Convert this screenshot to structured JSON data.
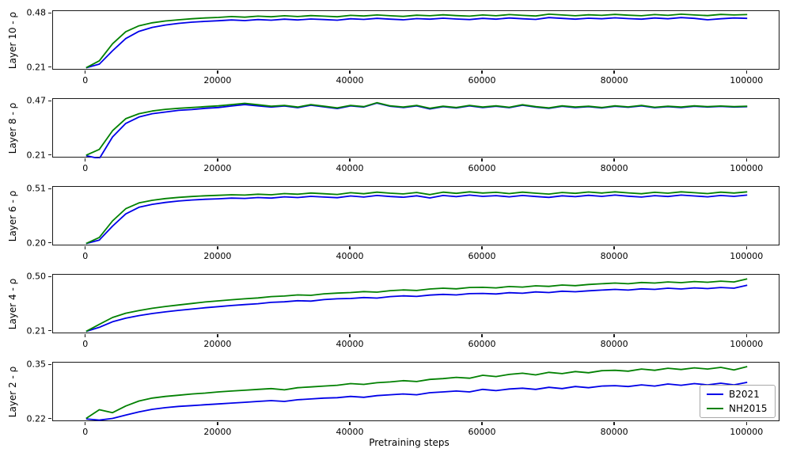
{
  "chart_data": {
    "type": "line",
    "xlabel": "Pretraining steps",
    "x_ticks": [
      0,
      20000,
      40000,
      60000,
      80000,
      100000
    ],
    "xlim": [
      -5000,
      105000
    ],
    "grid": false,
    "legend": {
      "position": "lower right",
      "entries": [
        {
          "label": "B2021",
          "color": "#0000e8"
        },
        {
          "label": "NH2015",
          "color": "#028102"
        }
      ]
    },
    "x": [
      0,
      2000,
      4000,
      6000,
      8000,
      10000,
      12000,
      14000,
      16000,
      18000,
      20000,
      22000,
      24000,
      26000,
      28000,
      30000,
      32000,
      34000,
      36000,
      38000,
      40000,
      42000,
      44000,
      46000,
      48000,
      50000,
      52000,
      54000,
      56000,
      58000,
      60000,
      62000,
      64000,
      66000,
      68000,
      70000,
      72000,
      74000,
      76000,
      78000,
      80000,
      82000,
      84000,
      86000,
      88000,
      90000,
      92000,
      94000,
      96000,
      98000,
      100000
    ],
    "panels": [
      {
        "ylabel": "Layer 10 - ρ",
        "yticks": [
          0.21,
          0.48
        ],
        "series": [
          {
            "name": "B2021",
            "color": "#0000e8",
            "values": [
              0.21,
              0.228,
              0.295,
              0.356,
              0.392,
              0.412,
              0.424,
              0.432,
              0.438,
              0.442,
              0.445,
              0.449,
              0.446,
              0.451,
              0.448,
              0.453,
              0.449,
              0.454,
              0.451,
              0.448,
              0.455,
              0.452,
              0.457,
              0.453,
              0.45,
              0.456,
              0.453,
              0.458,
              0.454,
              0.451,
              0.457,
              0.453,
              0.459,
              0.455,
              0.452,
              0.461,
              0.457,
              0.453,
              0.458,
              0.455,
              0.46,
              0.456,
              0.453,
              0.459,
              0.455,
              0.461,
              0.457,
              0.45,
              0.455,
              0.459,
              0.457
            ]
          },
          {
            "name": "NH2015",
            "color": "#028102",
            "values": [
              0.21,
              0.245,
              0.33,
              0.39,
              0.42,
              0.435,
              0.444,
              0.45,
              0.455,
              0.459,
              0.462,
              0.466,
              0.463,
              0.468,
              0.465,
              0.47,
              0.466,
              0.471,
              0.468,
              0.465,
              0.472,
              0.469,
              0.474,
              0.47,
              0.467,
              0.473,
              0.47,
              0.475,
              0.471,
              0.468,
              0.474,
              0.47,
              0.476,
              0.472,
              0.469,
              0.478,
              0.474,
              0.47,
              0.475,
              0.472,
              0.477,
              0.473,
              0.47,
              0.476,
              0.472,
              0.478,
              0.474,
              0.471,
              0.477,
              0.474,
              0.476
            ]
          }
        ]
      },
      {
        "ylabel": "Layer 8 - ρ",
        "yticks": [
          0.21,
          0.47
        ],
        "series": [
          {
            "name": "B2021",
            "color": "#0000e8",
            "values": [
              0.21,
              0.196,
              0.3,
              0.365,
              0.396,
              0.412,
              0.42,
              0.428,
              0.432,
              0.438,
              0.442,
              0.449,
              0.456,
              0.45,
              0.444,
              0.449,
              0.441,
              0.453,
              0.445,
              0.437,
              0.45,
              0.444,
              0.463,
              0.448,
              0.442,
              0.45,
              0.435,
              0.446,
              0.44,
              0.45,
              0.442,
              0.448,
              0.441,
              0.453,
              0.444,
              0.438,
              0.448,
              0.442,
              0.446,
              0.44,
              0.448,
              0.443,
              0.45,
              0.441,
              0.446,
              0.442,
              0.448,
              0.444,
              0.447,
              0.444,
              0.446
            ]
          },
          {
            "name": "NH2015",
            "color": "#028102",
            "values": [
              0.212,
              0.24,
              0.33,
              0.388,
              0.412,
              0.425,
              0.433,
              0.438,
              0.442,
              0.446,
              0.45,
              0.456,
              0.462,
              0.455,
              0.448,
              0.452,
              0.444,
              0.456,
              0.448,
              0.44,
              0.452,
              0.446,
              0.465,
              0.45,
              0.444,
              0.452,
              0.438,
              0.448,
              0.442,
              0.452,
              0.444,
              0.45,
              0.443,
              0.455,
              0.446,
              0.44,
              0.45,
              0.444,
              0.448,
              0.442,
              0.45,
              0.445,
              0.452,
              0.443,
              0.448,
              0.444,
              0.45,
              0.446,
              0.449,
              0.446,
              0.448
            ]
          }
        ]
      },
      {
        "ylabel": "Layer 6 - ρ",
        "yticks": [
          0.2,
          0.51
        ],
        "series": [
          {
            "name": "B2021",
            "color": "#0000e8",
            "values": [
              0.2,
              0.22,
              0.3,
              0.37,
              0.408,
              0.425,
              0.436,
              0.444,
              0.45,
              0.454,
              0.457,
              0.461,
              0.459,
              0.464,
              0.461,
              0.468,
              0.464,
              0.471,
              0.467,
              0.463,
              0.473,
              0.467,
              0.476,
              0.47,
              0.466,
              0.474,
              0.462,
              0.476,
              0.469,
              0.478,
              0.471,
              0.475,
              0.468,
              0.476,
              0.47,
              0.465,
              0.474,
              0.469,
              0.477,
              0.471,
              0.478,
              0.472,
              0.467,
              0.475,
              0.47,
              0.478,
              0.473,
              0.468,
              0.476,
              0.471,
              0.478
            ]
          },
          {
            "name": "NH2015",
            "color": "#028102",
            "values": [
              0.2,
              0.235,
              0.33,
              0.4,
              0.433,
              0.448,
              0.458,
              0.465,
              0.47,
              0.474,
              0.477,
              0.48,
              0.478,
              0.483,
              0.48,
              0.487,
              0.483,
              0.49,
              0.486,
              0.482,
              0.492,
              0.486,
              0.495,
              0.489,
              0.485,
              0.493,
              0.481,
              0.495,
              0.488,
              0.497,
              0.49,
              0.494,
              0.487,
              0.495,
              0.489,
              0.484,
              0.493,
              0.488,
              0.496,
              0.49,
              0.497,
              0.491,
              0.486,
              0.494,
              0.489,
              0.497,
              0.492,
              0.487,
              0.495,
              0.49,
              0.497
            ]
          }
        ]
      },
      {
        "ylabel": "Layer 4 - ρ",
        "yticks": [
          0.21,
          0.5
        ],
        "series": [
          {
            "name": "B2021",
            "color": "#0000e8",
            "values": [
              0.21,
              0.232,
              0.262,
              0.281,
              0.295,
              0.306,
              0.315,
              0.323,
              0.33,
              0.337,
              0.343,
              0.349,
              0.354,
              0.359,
              0.366,
              0.369,
              0.375,
              0.373,
              0.381,
              0.385,
              0.387,
              0.392,
              0.389,
              0.397,
              0.401,
              0.398,
              0.405,
              0.409,
              0.406,
              0.413,
              0.414,
              0.411,
              0.418,
              0.415,
              0.422,
              0.419,
              0.426,
              0.423,
              0.428,
              0.432,
              0.436,
              0.432,
              0.439,
              0.436,
              0.442,
              0.438,
              0.444,
              0.44,
              0.446,
              0.442,
              0.458
            ]
          },
          {
            "name": "NH2015",
            "color": "#028102",
            "values": [
              0.21,
              0.248,
              0.285,
              0.308,
              0.322,
              0.334,
              0.344,
              0.352,
              0.36,
              0.368,
              0.374,
              0.38,
              0.385,
              0.39,
              0.397,
              0.4,
              0.406,
              0.404,
              0.412,
              0.416,
              0.419,
              0.424,
              0.421,
              0.429,
              0.433,
              0.43,
              0.438,
              0.442,
              0.439,
              0.446,
              0.447,
              0.444,
              0.451,
              0.448,
              0.455,
              0.452,
              0.459,
              0.456,
              0.462,
              0.466,
              0.47,
              0.466,
              0.473,
              0.47,
              0.476,
              0.472,
              0.478,
              0.474,
              0.48,
              0.476,
              0.492
            ]
          }
        ]
      },
      {
        "ylabel": "Layer 2 - ρ",
        "yticks": [
          0.22,
          0.35
        ],
        "series": [
          {
            "name": "B2021",
            "color": "#0000e8",
            "values": [
              0.221,
              0.218,
              0.222,
              0.23,
              0.238,
              0.244,
              0.248,
              0.251,
              0.253,
              0.255,
              0.257,
              0.259,
              0.261,
              0.263,
              0.265,
              0.263,
              0.267,
              0.269,
              0.271,
              0.272,
              0.275,
              0.273,
              0.277,
              0.279,
              0.281,
              0.279,
              0.284,
              0.286,
              0.288,
              0.286,
              0.292,
              0.289,
              0.293,
              0.295,
              0.292,
              0.297,
              0.294,
              0.299,
              0.296,
              0.3,
              0.301,
              0.299,
              0.303,
              0.3,
              0.305,
              0.302,
              0.306,
              0.303,
              0.307,
              0.303,
              0.309
            ]
          },
          {
            "name": "NH2015",
            "color": "#028102",
            "values": [
              0.222,
              0.243,
              0.236,
              0.252,
              0.264,
              0.271,
              0.275,
              0.278,
              0.281,
              0.283,
              0.286,
              0.288,
              0.29,
              0.292,
              0.294,
              0.291,
              0.296,
              0.298,
              0.3,
              0.302,
              0.306,
              0.304,
              0.308,
              0.31,
              0.313,
              0.311,
              0.316,
              0.318,
              0.321,
              0.319,
              0.326,
              0.323,
              0.328,
              0.331,
              0.327,
              0.333,
              0.33,
              0.335,
              0.332,
              0.337,
              0.338,
              0.336,
              0.341,
              0.338,
              0.343,
              0.34,
              0.344,
              0.341,
              0.345,
              0.339,
              0.347
            ]
          }
        ]
      }
    ]
  }
}
